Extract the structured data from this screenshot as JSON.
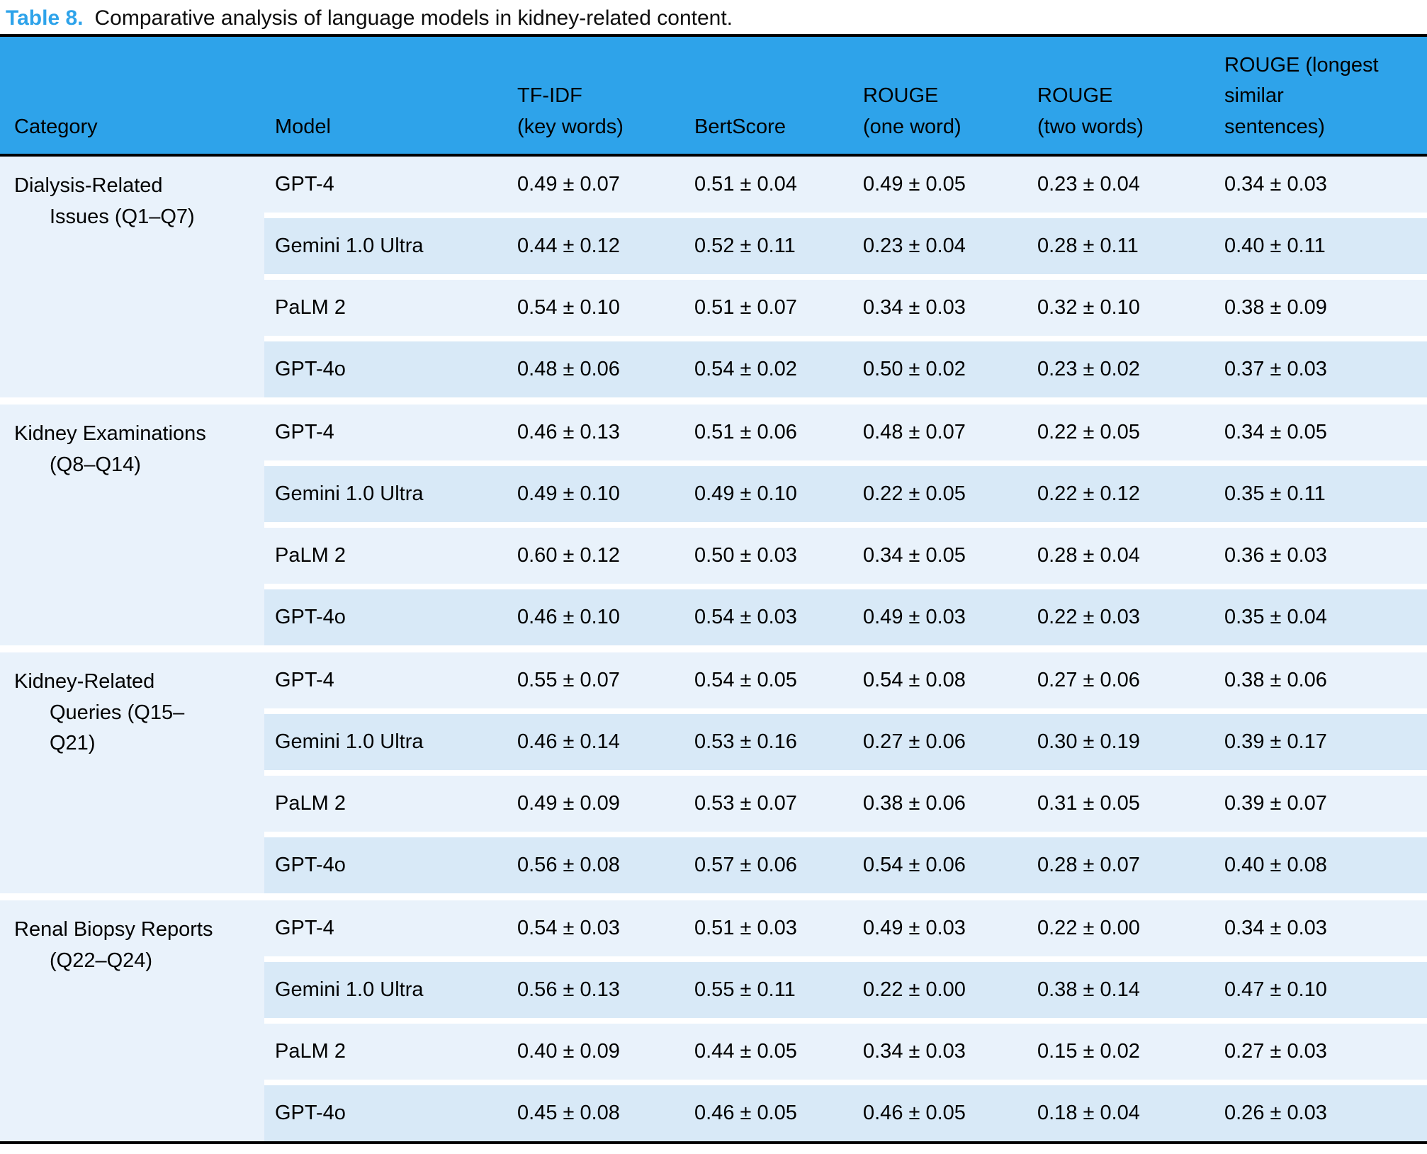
{
  "caption": {
    "label": "Table 8.",
    "text": "Comparative analysis of language models in kidney-related content."
  },
  "colors": {
    "accent_blue": "#2ea3ea",
    "row_light": "#e9f2fb",
    "row_dark": "#d8e9f7",
    "rule_black": "#000000"
  },
  "table": {
    "columns": [
      "Category",
      "Model",
      "TF-IDF\n(key words)",
      "BertScore",
      "ROUGE\n(one word)",
      "ROUGE\n(two words)",
      "ROUGE (longest\nsimilar\nsentences)"
    ],
    "groups": [
      {
        "category": "Dialysis-Related\nIssues (Q1–Q7)",
        "rows": [
          {
            "model": "GPT-4",
            "values": [
              "0.49 ± 0.07",
              "0.51 ± 0.04",
              "0.49 ± 0.05",
              "0.23 ± 0.04",
              "0.34 ± 0.03"
            ]
          },
          {
            "model": "Gemini 1.0 Ultra",
            "values": [
              "0.44 ± 0.12",
              "0.52 ± 0.11",
              "0.23 ± 0.04",
              "0.28 ± 0.11",
              "0.40 ± 0.11"
            ]
          },
          {
            "model": "PaLM 2",
            "values": [
              "0.54 ± 0.10",
              "0.51 ± 0.07",
              "0.34 ± 0.03",
              "0.32 ± 0.10",
              "0.38 ± 0.09"
            ]
          },
          {
            "model": "GPT-4o",
            "values": [
              "0.48 ± 0.06",
              "0.54 ± 0.02",
              "0.50 ± 0.02",
              "0.23 ± 0.02",
              "0.37 ± 0.03"
            ]
          }
        ]
      },
      {
        "category": "Kidney Examinations\n(Q8–Q14)",
        "rows": [
          {
            "model": "GPT-4",
            "values": [
              "0.46 ± 0.13",
              "0.51 ± 0.06",
              "0.48 ± 0.07",
              "0.22 ± 0.05",
              "0.34 ± 0.05"
            ]
          },
          {
            "model": "Gemini 1.0 Ultra",
            "values": [
              "0.49 ± 0.10",
              "0.49 ± 0.10",
              "0.22 ± 0.05",
              "0.22 ± 0.12",
              "0.35 ± 0.11"
            ]
          },
          {
            "model": "PaLM 2",
            "values": [
              "0.60 ± 0.12",
              "0.50 ± 0.03",
              "0.34 ± 0.05",
              "0.28 ± 0.04",
              "0.36 ± 0.03"
            ]
          },
          {
            "model": "GPT-4o",
            "values": [
              "0.46 ± 0.10",
              "0.54 ± 0.03",
              "0.49 ± 0.03",
              "0.22 ± 0.03",
              "0.35 ± 0.04"
            ]
          }
        ]
      },
      {
        "category": "Kidney-Related\nQueries (Q15–\nQ21)",
        "rows": [
          {
            "model": "GPT-4",
            "values": [
              "0.55 ± 0.07",
              "0.54 ± 0.05",
              "0.54 ± 0.08",
              "0.27 ± 0.06",
              "0.38 ± 0.06"
            ]
          },
          {
            "model": "Gemini 1.0 Ultra",
            "values": [
              "0.46 ± 0.14",
              "0.53 ± 0.16",
              "0.27 ± 0.06",
              "0.30 ± 0.19",
              "0.39 ± 0.17"
            ]
          },
          {
            "model": "PaLM 2",
            "values": [
              "0.49 ± 0.09",
              "0.53 ± 0.07",
              "0.38 ± 0.06",
              "0.31 ± 0.05",
              "0.39 ± 0.07"
            ]
          },
          {
            "model": "GPT-4o",
            "values": [
              "0.56 ± 0.08",
              "0.57 ± 0.06",
              "0.54 ± 0.06",
              "0.28 ± 0.07",
              "0.40 ± 0.08"
            ]
          }
        ]
      },
      {
        "category": "Renal Biopsy Reports\n(Q22–Q24)",
        "rows": [
          {
            "model": "GPT-4",
            "values": [
              "0.54 ± 0.03",
              "0.51 ± 0.03",
              "0.49 ± 0.03",
              "0.22 ± 0.00",
              "0.34 ± 0.03"
            ]
          },
          {
            "model": "Gemini 1.0 Ultra",
            "values": [
              "0.56 ± 0.13",
              "0.55 ± 0.11",
              "0.22 ± 0.00",
              "0.38 ± 0.14",
              "0.47 ± 0.10"
            ]
          },
          {
            "model": "PaLM 2",
            "values": [
              "0.40 ± 0.09",
              "0.44 ± 0.05",
              "0.34 ± 0.03",
              "0.15 ± 0.02",
              "0.27 ± 0.03"
            ]
          },
          {
            "model": "GPT-4o",
            "values": [
              "0.45 ± 0.08",
              "0.46 ± 0.05",
              "0.46 ± 0.05",
              "0.18 ± 0.04",
              "0.26 ± 0.03"
            ]
          }
        ]
      }
    ]
  }
}
